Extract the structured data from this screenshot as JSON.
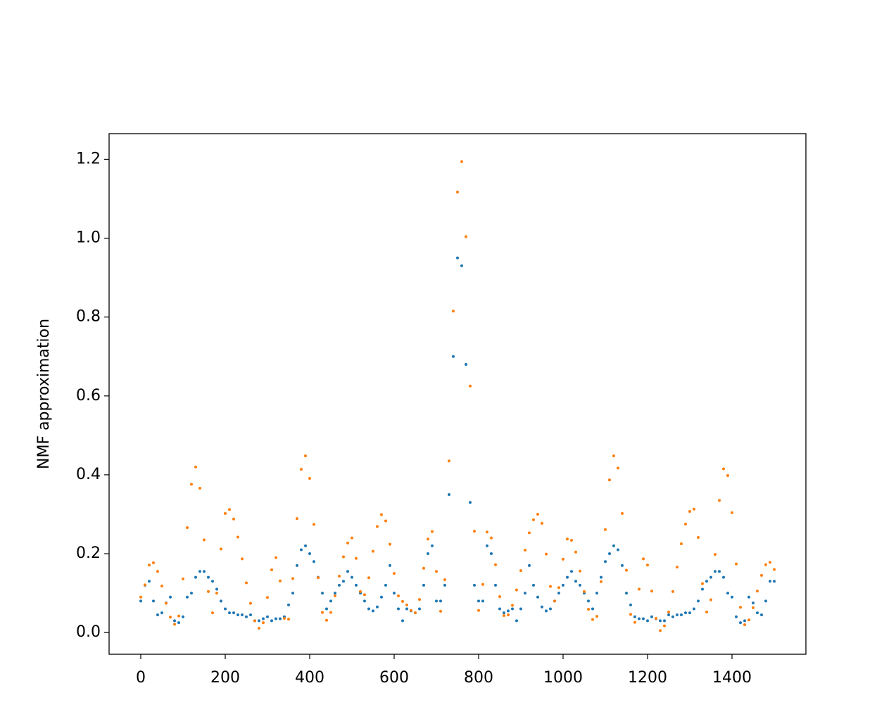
{
  "chart_data": {
    "type": "scatter",
    "y_label": "NMF approximation",
    "xlim": [
      -75,
      1575
    ],
    "ylim": [
      -0.055,
      1.265
    ],
    "xticks": [
      0,
      200,
      400,
      600,
      800,
      1000,
      1200,
      1400
    ],
    "yticks": [
      {
        "value": 0,
        "label": "0.0"
      },
      0.2,
      0.4,
      0.6,
      0.8,
      {
        "value": 1,
        "label": "1.0"
      },
      1.2
    ],
    "x": [
      0,
      10,
      20,
      30,
      40,
      50,
      60,
      70,
      80,
      90,
      100,
      110,
      120,
      130,
      140,
      150,
      160,
      170,
      180,
      190,
      200,
      210,
      220,
      230,
      240,
      250,
      260,
      270,
      280,
      290,
      300,
      310,
      320,
      330,
      340,
      350,
      360,
      370,
      380,
      390,
      400,
      410,
      420,
      430,
      440,
      450,
      460,
      470,
      480,
      490,
      500,
      510,
      520,
      530,
      540,
      550,
      560,
      570,
      580,
      590,
      600,
      610,
      620,
      630,
      640,
      650,
      660,
      670,
      680,
      690,
      700,
      710,
      720,
      730,
      740,
      750,
      760,
      770,
      780,
      790,
      800,
      810,
      820,
      830,
      840,
      850,
      860,
      870,
      880,
      890,
      900,
      910,
      920,
      930,
      940,
      950,
      960,
      970,
      980,
      990,
      1000,
      1010,
      1020,
      1030,
      1040,
      1050,
      1060,
      1070,
      1080,
      1090,
      1100,
      1110,
      1120,
      1130,
      1140,
      1150,
      1160,
      1170,
      1180,
      1190,
      1200,
      1210,
      1220,
      1230,
      1240,
      1250,
      1260,
      1270,
      1280,
      1290,
      1300,
      1310,
      1320,
      1330,
      1340,
      1350,
      1360,
      1370,
      1380,
      1390,
      1400,
      1410,
      1420,
      1430,
      1440,
      1450,
      1460,
      1470,
      1480,
      1490,
      1500
    ],
    "series": [
      {
        "color": "#1f77b4",
        "values": [
          0.08,
          0.12,
          0.13,
          0.08,
          0.045,
          0.05,
          0.075,
          0.09,
          0.03,
          0.025,
          0.04,
          0.09,
          0.1,
          0.14,
          0.155,
          0.155,
          0.14,
          0.13,
          0.11,
          0.08,
          0.06,
          0.05,
          0.05,
          0.045,
          0.045,
          0.04,
          0.045,
          0.03,
          0.03,
          0.035,
          0.04,
          0.03,
          0.035,
          0.035,
          0.04,
          0.07,
          0.1,
          0.17,
          0.21,
          0.22,
          0.2,
          0.18,
          0.14,
          0.1,
          0.06,
          0.08,
          0.1,
          0.12,
          0.13,
          0.155,
          0.14,
          0.12,
          0.1,
          0.08,
          0.06,
          0.055,
          0.065,
          0.09,
          0.12,
          0.17,
          0.1,
          0.06,
          0.03,
          0.06,
          0.055,
          0.05,
          0.06,
          0.12,
          0.2,
          0.22,
          0.08,
          0.08,
          0.12,
          0.35,
          0.7,
          0.95,
          0.93,
          0.68,
          0.33,
          0.12,
          0.08,
          0.08,
          0.22,
          0.2,
          0.12,
          0.06,
          0.05,
          0.055,
          0.06,
          0.03,
          0.06,
          0.1,
          0.17,
          0.12,
          0.09,
          0.065,
          0.055,
          0.06,
          0.08,
          0.1,
          0.12,
          0.14,
          0.155,
          0.13,
          0.12,
          0.1,
          0.08,
          0.06,
          0.1,
          0.14,
          0.18,
          0.2,
          0.22,
          0.21,
          0.17,
          0.1,
          0.07,
          0.04,
          0.035,
          0.035,
          0.03,
          0.04,
          0.035,
          0.03,
          0.03,
          0.045,
          0.04,
          0.045,
          0.045,
          0.05,
          0.05,
          0.06,
          0.08,
          0.11,
          0.13,
          0.14,
          0.155,
          0.155,
          0.14,
          0.1,
          0.09,
          0.04,
          0.025,
          0.03,
          0.09,
          0.075,
          0.05,
          0.045,
          0.08,
          0.13,
          0.13
        ]
      },
      {
        "color": "#ff7f0e",
        "values": [
          0.09,
          0.121,
          0.171,
          0.177,
          0.155,
          0.118,
          0.074,
          0.039,
          0.021,
          0.042,
          0.136,
          0.266,
          0.376,
          0.42,
          0.366,
          0.235,
          0.104,
          0.05,
          0.1,
          0.212,
          0.302,
          0.312,
          0.288,
          0.242,
          0.187,
          0.126,
          0.074,
          0.03,
          0.011,
          0.025,
          0.089,
          0.159,
          0.19,
          0.131,
          0.036,
          0.034,
          0.137,
          0.289,
          0.414,
          0.448,
          0.391,
          0.274,
          0.139,
          0.051,
          0.031,
          0.051,
          0.093,
          0.143,
          0.192,
          0.227,
          0.24,
          0.188,
          0.104,
          0.096,
          0.139,
          0.206,
          0.269,
          0.299,
          0.283,
          0.224,
          0.15,
          0.093,
          0.079,
          0.07,
          0.056,
          0.05,
          0.084,
          0.163,
          0.237,
          0.256,
          0.155,
          0.054,
          0.134,
          0.435,
          0.815,
          1.117,
          1.194,
          1.004,
          0.625,
          0.257,
          0.056,
          0.122,
          0.255,
          0.24,
          0.172,
          0.091,
          0.043,
          0.045,
          0.069,
          0.108,
          0.157,
          0.209,
          0.253,
          0.286,
          0.3,
          0.277,
          0.199,
          0.117,
          0.08,
          0.114,
          0.186,
          0.237,
          0.234,
          0.204,
          0.156,
          0.104,
          0.059,
          0.033,
          0.041,
          0.129,
          0.261,
          0.387,
          0.448,
          0.417,
          0.302,
          0.158,
          0.046,
          0.026,
          0.11,
          0.187,
          0.171,
          0.105,
          0.036,
          0.005,
          0.017,
          0.052,
          0.104,
          0.166,
          0.225,
          0.275,
          0.307,
          0.313,
          0.241,
          0.124,
          0.052,
          0.083,
          0.198,
          0.335,
          0.415,
          0.398,
          0.304,
          0.174,
          0.064,
          0.02,
          0.032,
          0.063,
          0.105,
          0.145,
          0.172,
          0.178,
          0.16
        ]
      }
    ]
  }
}
